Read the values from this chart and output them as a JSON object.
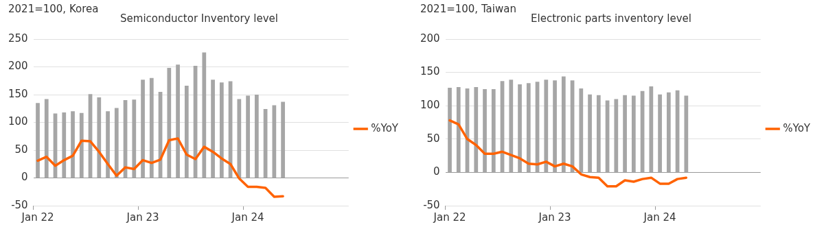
{
  "chart_data": [
    {
      "type": "bar",
      "title": "Semiconductor Inventory level",
      "ylabel": "2021=100, Korea",
      "categories": [
        "Jan 22",
        null,
        null,
        null,
        null,
        null,
        null,
        null,
        null,
        null,
        null,
        null,
        "Jan 23",
        null,
        null,
        null,
        null,
        null,
        null,
        null,
        null,
        null,
        null,
        null,
        "Jan 24",
        null,
        null,
        null,
        null,
        null,
        null,
        null,
        null,
        null,
        null,
        null
      ],
      "series": [
        {
          "color": "#a6a6a6",
          "values": [
            135,
            142,
            116,
            118,
            120,
            117,
            151,
            145,
            120,
            126,
            140,
            141,
            177,
            180,
            155,
            198,
            204,
            166,
            202,
            226,
            177,
            172,
            174,
            142,
            148,
            150,
            124,
            131,
            137,
            null,
            null,
            null,
            null,
            null,
            null,
            null
          ]
        },
        {
          "type": "line",
          "name": "%YoY",
          "color": "#ff6200",
          "values": [
            31,
            38,
            22,
            32,
            40,
            67,
            66,
            47,
            25,
            4,
            19,
            16,
            32,
            27,
            33,
            68,
            71,
            42,
            34,
            56,
            47,
            35,
            25,
            -1,
            -16,
            -16,
            -18,
            -34,
            -33,
            null,
            null,
            null,
            null,
            null,
            null,
            null
          ]
        }
      ],
      "ylim": [
        -50,
        250
      ],
      "yticks": [
        -50,
        0,
        50,
        100,
        150,
        200,
        250
      ],
      "grid": "y",
      "legend": "right",
      "marker": "none",
      "line_style": "solid"
    },
    {
      "type": "bar",
      "title": "Electronic parts inventory level",
      "ylabel": "2021=100, Taiwan",
      "categories": [
        "Jan 22",
        null,
        null,
        null,
        null,
        null,
        null,
        null,
        null,
        null,
        null,
        null,
        "Jan 23",
        null,
        null,
        null,
        null,
        null,
        null,
        null,
        null,
        null,
        null,
        null,
        "Jan 24",
        null,
        null,
        null,
        null,
        null,
        null,
        null,
        null,
        null,
        null,
        null
      ],
      "series": [
        {
          "color": "#a6a6a6",
          "values": [
            127,
            128,
            126,
            128,
            125,
            125,
            137,
            139,
            132,
            134,
            136,
            139,
            138,
            144,
            138,
            126,
            117,
            116,
            108,
            110,
            116,
            115,
            122,
            129,
            117,
            120,
            123,
            115,
            null,
            null,
            null,
            null,
            null,
            null,
            null,
            null
          ]
        },
        {
          "type": "line",
          "name": "%YoY",
          "color": "#ff6200",
          "values": [
            78,
            72,
            50,
            41,
            28,
            28,
            31,
            26,
            21,
            13,
            12,
            16,
            9,
            13,
            9,
            -3,
            -7,
            -8,
            -21,
            -21,
            -12,
            -14,
            -10,
            -8,
            -17,
            -17,
            -10,
            -8,
            null,
            null,
            null,
            null,
            null,
            null,
            null,
            null
          ]
        }
      ],
      "ylim": [
        -50,
        200
      ],
      "yticks": [
        -50,
        0,
        50,
        100,
        150,
        200
      ],
      "grid": "y",
      "legend": "right",
      "marker": "none",
      "line_style": "solid"
    }
  ]
}
